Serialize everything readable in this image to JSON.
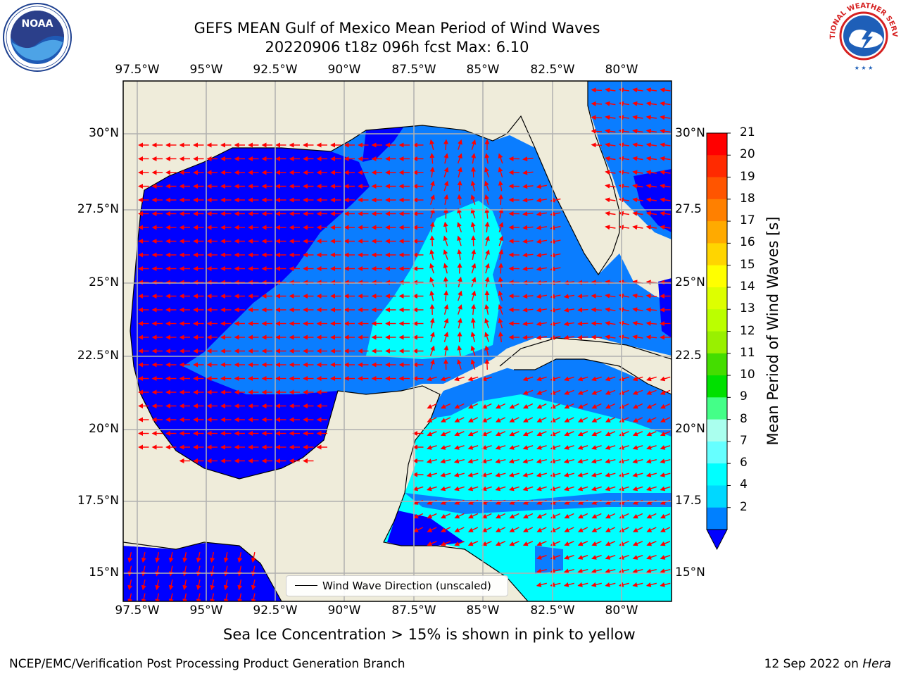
{
  "title": {
    "line1": "GEFS MEAN Gulf of Mexico Mean Period of Wind Waves",
    "line2": "20220906 t18z 096h fcst   Max: 6.10"
  },
  "axes": {
    "lon_ticks": [
      "97.5°W",
      "95°W",
      "92.5°W",
      "90°W",
      "87.5°W",
      "85°W",
      "82.5°W",
      "80°W"
    ],
    "lat_ticks_left": [
      "30°N",
      "27.5°N",
      "25°N",
      "22.5°N",
      "20°N",
      "17.5°N",
      "15°N"
    ],
    "lat_ticks_right": [
      "30°N",
      "27.5",
      "25°N",
      "22.5",
      "20°N",
      "17.5",
      "15°N"
    ]
  },
  "colorbar": {
    "label": "Mean Period of Wind Waves [s]",
    "ticks": [
      "21",
      "20",
      "19",
      "18",
      "17",
      "16",
      "15",
      "14",
      "13",
      "12",
      "11",
      "10",
      "9",
      "8",
      "7",
      "6",
      "4",
      "2"
    ],
    "colors": [
      "#ff0000",
      "#ff2a00",
      "#ff5500",
      "#ff8000",
      "#ffaa00",
      "#ffd500",
      "#ffff00",
      "#ddff00",
      "#bbff00",
      "#99f000",
      "#44dd00",
      "#00e000",
      "#44ff88",
      "#aaffee",
      "#66ffff",
      "#00ffff",
      "#00d8ff",
      "#0080ff",
      "#0000ff"
    ]
  },
  "legend": {
    "label": "Wind Wave Direction (unscaled)"
  },
  "caption": "Sea Ice Concentration > 15% is shown in pink to yellow",
  "footer": {
    "left": "NCEP/EMC/Verification Post Processing Product Generation Branch",
    "right_date": "12 Sep 2022 on ",
    "right_host": "Hera"
  },
  "logos": {
    "noaa": "NOAA",
    "nws": "NATIONAL WEATHER SERVICE"
  }
}
